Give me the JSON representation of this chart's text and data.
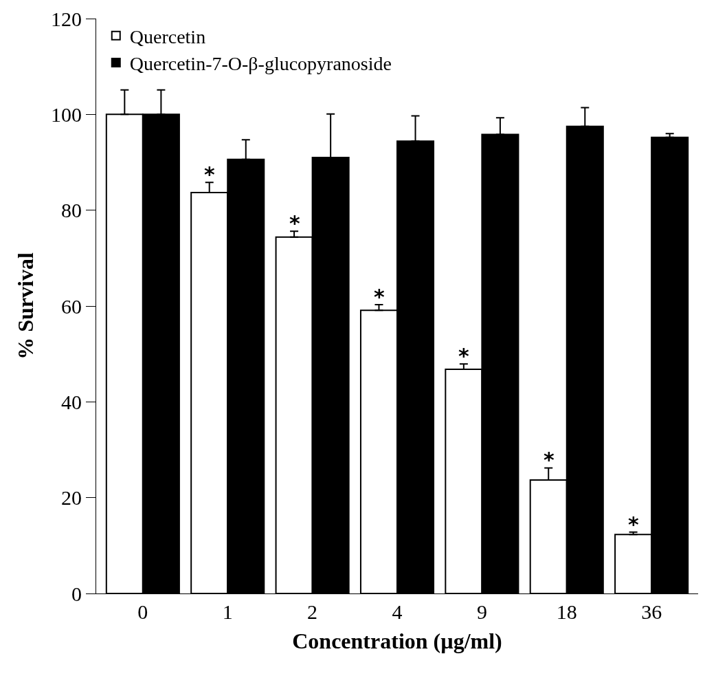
{
  "chart_data": {
    "type": "bar",
    "xlabel": "Concentration (µg/ml)",
    "ylabel": "% Survival",
    "categories": [
      "0",
      "1",
      "2",
      "4",
      "9",
      "18",
      "36"
    ],
    "series": [
      {
        "name": "Quercetin",
        "color": "#ffffff",
        "values": [
          100,
          83.7,
          74.4,
          59.1,
          46.8,
          23.7,
          12.3
        ],
        "errors": [
          [
            100,
            105.1
          ],
          [
            83.7,
            85.8
          ],
          [
            74.4,
            75.6
          ],
          [
            59.1,
            60.3
          ],
          [
            46.8,
            47.9
          ],
          [
            23.7,
            26.2
          ],
          [
            12.3,
            12.8
          ]
        ]
      },
      {
        "name": "Quercetin-7-O-β-glucopyranoside",
        "color": "#000000",
        "values": [
          100,
          90.6,
          91.0,
          94.4,
          95.8,
          97.5,
          95.2
        ],
        "errors": [
          [
            100,
            105.1
          ],
          [
            90.6,
            94.7
          ],
          [
            91.0,
            100.1
          ],
          [
            94.4,
            99.7
          ],
          [
            95.8,
            99.3
          ],
          [
            97.5,
            101.4
          ],
          [
            95.2,
            96.0
          ]
        ]
      }
    ],
    "annotations": [
      {
        "text": "*",
        "x": "1",
        "y": 85.8
      },
      {
        "text": "*",
        "x": "2",
        "y": 75.6
      },
      {
        "text": "*",
        "x": "4",
        "y": 60.3
      },
      {
        "text": "*",
        "x": "9",
        "y": 47.9
      },
      {
        "text": "*",
        "x": "18",
        "y": 26.2
      },
      {
        "text": "*",
        "x": "36",
        "y": 12.8
      }
    ],
    "ylim": [
      0,
      120
    ],
    "yticks": [
      0,
      20,
      40,
      60,
      80,
      100,
      120
    ],
    "legend": "top left"
  }
}
